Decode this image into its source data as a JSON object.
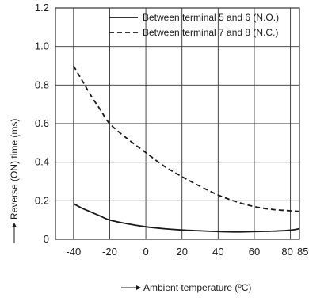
{
  "chart_data": {
    "type": "line",
    "xlabel": "Ambient temperature (ºC)",
    "ylabel": "Reverse (ON) time (ms)",
    "xlim": [
      -50,
      85
    ],
    "ylim": [
      0,
      1.2
    ],
    "x_ticks": [
      -40,
      -20,
      0,
      20,
      40,
      60,
      80,
      85
    ],
    "x_tick_labels": [
      "-40",
      "-20",
      "0",
      "20",
      "40",
      "60",
      "80",
      "85"
    ],
    "y_ticks": [
      0,
      0.2,
      0.4,
      0.6,
      0.8,
      1.0,
      1.2
    ],
    "y_tick_labels": [
      "0",
      "0.2",
      "0.4",
      "0.6",
      "0.8",
      "1.0",
      "1.2"
    ],
    "grid": true,
    "legend_position": "top-right",
    "colors": {
      "line": "#1a1a1a",
      "grid": "#333333"
    },
    "series": [
      {
        "name": "Between terminal 5 and 6 (N.O.)",
        "style": "solid",
        "x": [
          -40,
          -35,
          -30,
          -25,
          -20,
          -10,
          0,
          10,
          20,
          30,
          40,
          50,
          60,
          70,
          80,
          85
        ],
        "y": [
          0.185,
          0.16,
          0.14,
          0.12,
          0.1,
          0.08,
          0.065,
          0.055,
          0.048,
          0.044,
          0.04,
          0.038,
          0.04,
          0.042,
          0.047,
          0.055
        ]
      },
      {
        "name": "Between terminal 7 and 8 (N.C.)",
        "style": "dashed",
        "x": [
          -40,
          -35,
          -30,
          -25,
          -20,
          -10,
          0,
          10,
          20,
          30,
          40,
          50,
          60,
          70,
          80,
          85
        ],
        "y": [
          0.9,
          0.82,
          0.74,
          0.67,
          0.6,
          0.52,
          0.45,
          0.38,
          0.325,
          0.275,
          0.23,
          0.195,
          0.17,
          0.155,
          0.148,
          0.145
        ]
      }
    ]
  }
}
